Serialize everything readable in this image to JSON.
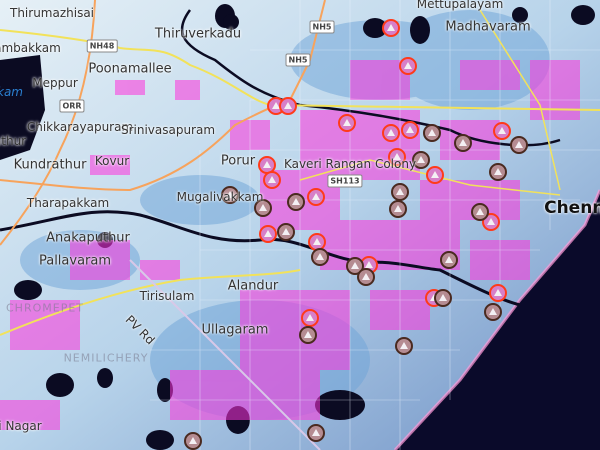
{
  "map": {
    "places": [
      {
        "name": "Thirumazhisai"
      },
      {
        "name": "Mettupalayam"
      },
      {
        "name": "rambakkam"
      },
      {
        "name": "Thiruverkadu"
      },
      {
        "name": "Poonamallee"
      },
      {
        "name": "Meppur"
      },
      {
        "name": "Madhavaram"
      },
      {
        "name": "Chikkarayapuram"
      },
      {
        "name": "Srinivasapuram"
      },
      {
        "name": "athur"
      },
      {
        "name": "Kundrathur"
      },
      {
        "name": "Kovur"
      },
      {
        "name": "Porur"
      },
      {
        "name": "Kaveri Rangan Colony"
      },
      {
        "name": "Mugalivakkam"
      },
      {
        "name": "Tharapakkam"
      },
      {
        "name": "Anakaputhur"
      },
      {
        "name": "Pallavaram"
      },
      {
        "name": "Tirisulam"
      },
      {
        "name": "Alandur"
      },
      {
        "name": "Ullagaram"
      },
      {
        "name": "i Nagar"
      },
      {
        "name": "Chenna"
      }
    ],
    "faint_labels": [
      {
        "name": "NEMILICHERY"
      },
      {
        "name": "CHROMEPET"
      }
    ],
    "water_labels": [
      {
        "name": "kam"
      }
    ],
    "road_shields": [
      {
        "label": "NH48"
      },
      {
        "label": "NH5"
      },
      {
        "label": "NH5"
      },
      {
        "label": "ORR"
      },
      {
        "label": "SH113"
      }
    ],
    "road_labels": [
      {
        "name": "PV Rd"
      }
    ],
    "markers_legend": {
      "red_ring": "active",
      "dark_ring": "inactive"
    },
    "colors": {
      "sea": "#0a0a2a",
      "lake": "#0b0b22",
      "built_up": "#ff33dd",
      "major_road": "#f7a35c",
      "highway": "#f2e25a",
      "marker_red": "#ff3a1a",
      "marker_dark": "#4a2a20",
      "marker_fill": "#b58c92"
    }
  }
}
